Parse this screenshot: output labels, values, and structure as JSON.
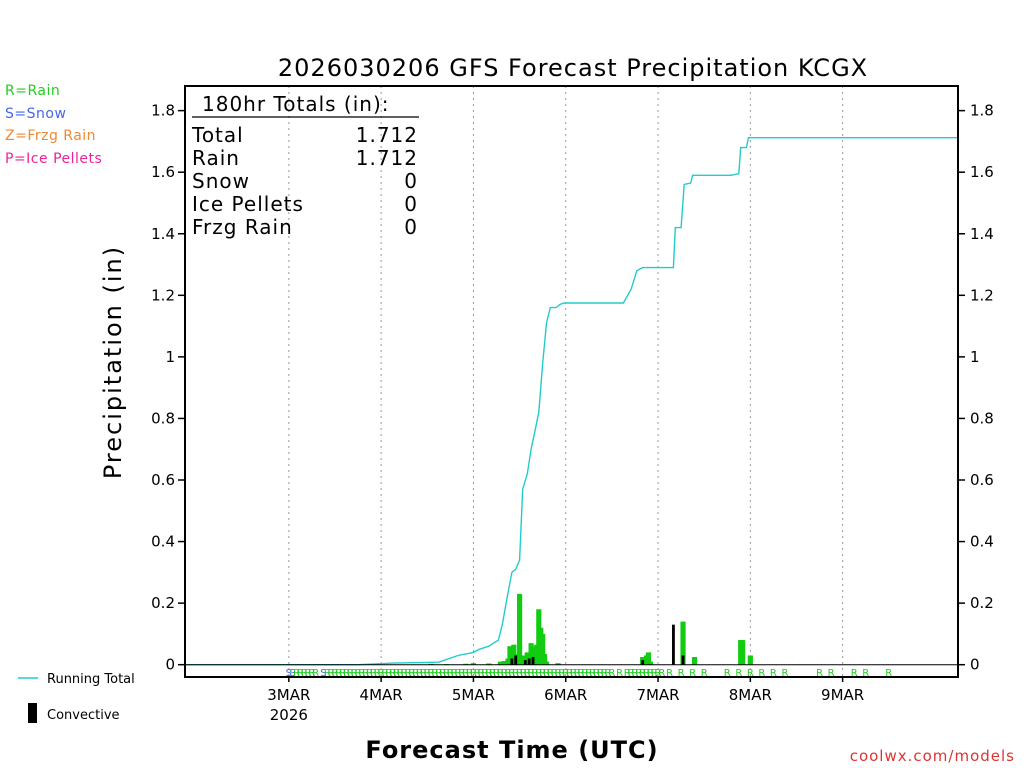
{
  "chart_data": {
    "type": "bar+line",
    "title": "2026030206 GFS Forecast Precipitation KCGX",
    "ylabel": "Precipitation (in)",
    "xlabel": "Forecast Time (UTC)",
    "ylim": [
      -0.04,
      1.88
    ],
    "xlim_hours": [
      -18,
      183
    ],
    "yticks": [
      0,
      0.2,
      0.4,
      0.6,
      0.8,
      1,
      1.2,
      1.4,
      1.6,
      1.8
    ],
    "ytick_labels": [
      "0",
      "0.2",
      "0.4",
      "0.6",
      "0.8",
      "1",
      "1.2",
      "1.4",
      "1.6",
      "1.8"
    ],
    "xticks": [
      {
        "hour": 9,
        "label": "3MAR",
        "sublabel": "2026"
      },
      {
        "hour": 33,
        "label": "4MAR"
      },
      {
        "hour": 57,
        "label": "5MAR"
      },
      {
        "hour": 81,
        "label": "6MAR"
      },
      {
        "hour": 105,
        "label": "7MAR"
      },
      {
        "hour": 129,
        "label": "8MAR"
      },
      {
        "hour": 153,
        "label": "9MAR"
      }
    ],
    "grid": "vertical dotted",
    "ptype_legend": [
      {
        "text": "R=Rain",
        "color": "#22cc22"
      },
      {
        "text": "S=Snow",
        "color": "#4466ee"
      },
      {
        "text": "Z=Frzg Rain",
        "color": "#ee8833"
      },
      {
        "text": "P=Ice Pellets",
        "color": "#ee2299"
      }
    ],
    "totals": {
      "header": "180hr Totals (in):",
      "rows": [
        {
          "label": "Total",
          "value": "1.712"
        },
        {
          "label": "Rain",
          "value": "1.712"
        },
        {
          "label": "Snow",
          "value": "0"
        },
        {
          "label": "Ice Pellets",
          "value": "0"
        },
        {
          "label": "Frzg Rain",
          "value": "0"
        }
      ]
    },
    "series": [
      {
        "name": "Running Total",
        "type": "line",
        "color": "#22cccc",
        "points": [
          [
            -18,
            0
          ],
          [
            27,
            0
          ],
          [
            36,
            0.005
          ],
          [
            48,
            0.008
          ],
          [
            53,
            0.03
          ],
          [
            57,
            0.04
          ],
          [
            58.5,
            0.05
          ],
          [
            61,
            0.06
          ],
          [
            63.5,
            0.08
          ],
          [
            64.5,
            0.13
          ],
          [
            65.5,
            0.2
          ],
          [
            67,
            0.3
          ],
          [
            68,
            0.31
          ],
          [
            69,
            0.34
          ],
          [
            69.8,
            0.57
          ],
          [
            71,
            0.62
          ],
          [
            72,
            0.7
          ],
          [
            73,
            0.76
          ],
          [
            74,
            0.82
          ],
          [
            75,
            0.98
          ],
          [
            76,
            1.11
          ],
          [
            77,
            1.16
          ],
          [
            78.5,
            1.16
          ],
          [
            79.5,
            1.17
          ],
          [
            80.5,
            1.175
          ],
          [
            86,
            1.175
          ],
          [
            96,
            1.175
          ],
          [
            98,
            1.22
          ],
          [
            99.5,
            1.28
          ],
          [
            101,
            1.29
          ],
          [
            109,
            1.29
          ],
          [
            109.5,
            1.42
          ],
          [
            111,
            1.42
          ],
          [
            111.8,
            1.56
          ],
          [
            113.5,
            1.565
          ],
          [
            114,
            1.59
          ],
          [
            124,
            1.59
          ],
          [
            126,
            1.595
          ],
          [
            126.5,
            1.68
          ],
          [
            128,
            1.68
          ],
          [
            128.5,
            1.712
          ],
          [
            183,
            1.712
          ]
        ]
      },
      {
        "name": "Rain",
        "type": "bar",
        "color": "#11cc11",
        "hours": [
          46,
          50,
          55,
          57,
          61,
          64,
          65,
          66,
          66.5,
          67,
          67.5,
          68,
          69,
          70,
          70.5,
          71,
          72,
          72.5,
          73,
          73.5,
          74,
          74.5,
          75,
          75.5,
          76,
          79,
          101,
          101.5,
          102,
          102.5,
          103,
          111.5,
          114.5,
          126.5,
          127,
          129
        ],
        "values": [
          0.003,
          0.002,
          0.003,
          0.005,
          0.004,
          0.01,
          0.012,
          0.02,
          0.06,
          0.055,
          0.065,
          0.035,
          0.23,
          0.03,
          0.025,
          0.04,
          0.07,
          0.055,
          0.06,
          0.065,
          0.18,
          0.12,
          0.1,
          0.035,
          0.01,
          0.005,
          0.025,
          0.02,
          0.03,
          0.04,
          0.01,
          0.14,
          0.025,
          0.08,
          0.08,
          0.03
        ]
      },
      {
        "name": "Convective",
        "type": "bar",
        "color": "#000000",
        "hours": [
          67,
          68,
          70.5,
          71.5,
          72.5,
          101,
          109,
          111.5
        ],
        "values": [
          0.02,
          0.03,
          0.015,
          0.02,
          0.025,
          0.015,
          0.13,
          0.03
        ]
      }
    ],
    "ptype_markers": [
      {
        "hours": [
          9,
          10
        ],
        "label": "S",
        "color": "#4466ee"
      },
      {
        "hours": [
          11,
          12,
          13,
          14,
          15,
          16
        ],
        "label": "R",
        "color": "#22cc22"
      },
      {
        "hours": [
          18
        ],
        "label": "S",
        "color": "#4466ee"
      },
      {
        "hours": [
          19,
          20,
          21,
          22,
          23,
          24,
          25,
          26,
          27,
          28,
          29,
          30,
          31,
          32,
          33,
          34,
          35,
          36,
          37,
          38,
          39,
          40,
          41,
          42,
          43,
          44,
          45,
          46,
          47,
          48,
          49,
          50,
          51,
          52,
          53,
          54,
          55,
          56,
          57,
          58,
          59,
          60,
          61,
          62,
          63,
          64,
          65,
          66,
          67,
          68,
          69,
          70,
          71,
          72,
          73,
          74,
          75,
          76,
          77,
          78,
          79,
          80,
          81,
          82,
          83,
          84,
          85,
          86,
          87,
          88,
          89,
          90,
          91,
          92,
          93,
          95,
          97,
          98,
          99,
          100,
          101,
          102,
          103,
          104,
          105,
          106,
          108,
          111,
          114,
          117,
          123,
          126,
          129,
          132,
          135,
          138,
          147,
          150,
          156,
          159,
          165
        ],
        "label": "R",
        "color": "#22cc22"
      }
    ],
    "bottom_legend": [
      {
        "text": "Running Total",
        "symbol": "line",
        "color": "#22cccc"
      },
      {
        "text": "Convective",
        "symbol": "bar",
        "color": "#000000"
      }
    ],
    "credit": "coolwx.com/models"
  }
}
